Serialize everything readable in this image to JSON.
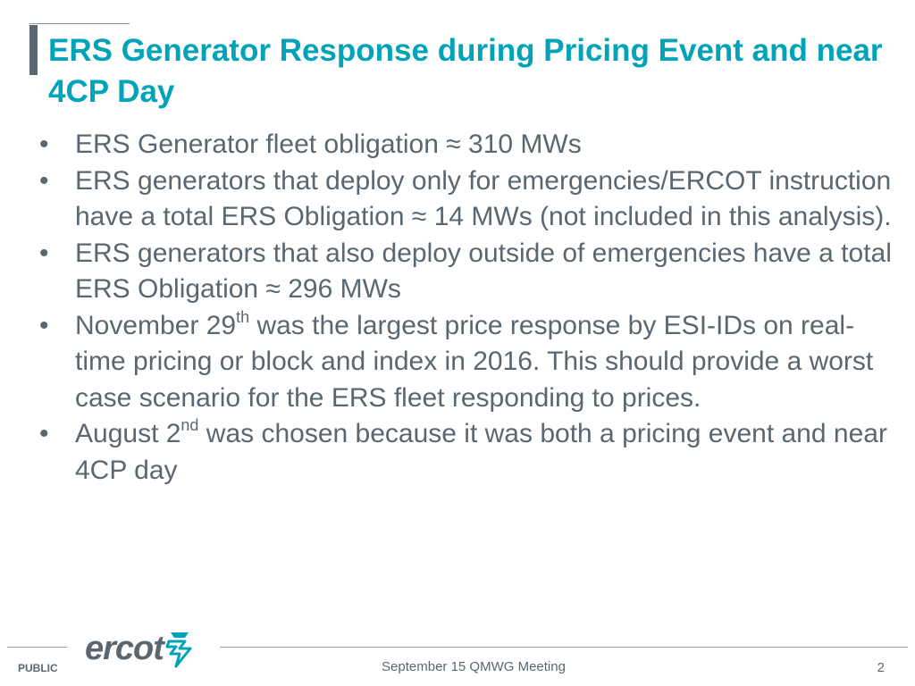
{
  "slide": {
    "title": "ERS Generator Response during Pricing Event and near 4CP Day",
    "bullets": [
      {
        "text": "ERS Generator fleet obligation ≈ 310 MWs"
      },
      {
        "text": "ERS generators that deploy only for emergencies/ERCOT instruction have a total ERS Obligation ≈ 14 MWs (not included in this analysis)."
      },
      {
        "text": "ERS generators that also deploy outside of emergencies have a total ERS Obligation ≈ 296 MWs"
      },
      {
        "pre": "November 29",
        "sup": "th",
        "post": " was the largest price response by ESI-IDs on real-time pricing or block and index  in 2016. This should provide a worst case scenario for the ERS fleet responding to prices."
      },
      {
        "pre": "August 2",
        "sup": "nd",
        "post": " was chosen because it was both a pricing event and near 4CP day"
      }
    ],
    "bullet_symbol": "•"
  },
  "footer": {
    "classification": "PUBLIC",
    "logo_text": "ercot",
    "logo_icon": "ercot-bolt-icon",
    "meeting": "September 15 QMWG Meeting",
    "page_number": "2"
  },
  "colors": {
    "title": "#00a3b8",
    "body_text": "#5b6770",
    "accent_bar": "#5b6770",
    "logo_mark": "#00a3b8"
  }
}
